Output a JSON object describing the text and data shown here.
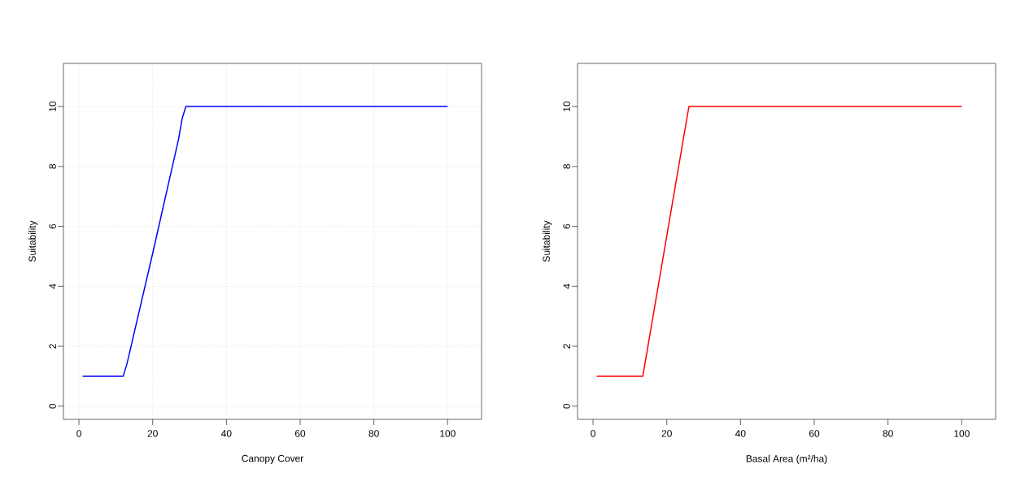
{
  "chart_data": [
    {
      "type": "line",
      "xlabel": "Canopy Cover",
      "ylabel": "Suitability",
      "color": "#0000ff",
      "grid": true,
      "x": [
        1,
        12,
        13,
        20,
        27,
        28,
        29,
        100
      ],
      "values": [
        1,
        1,
        1.4,
        5.1,
        8.9,
        9.6,
        10,
        10
      ],
      "xlim": [
        -4.2,
        109.2
      ],
      "ylim": [
        -0.44,
        11.44
      ],
      "xticks": [
        0,
        20,
        40,
        60,
        80,
        100
      ],
      "yticks": [
        0,
        2,
        4,
        6,
        8,
        10
      ]
    },
    {
      "type": "line",
      "xlabel": "Basal Area (m²/ha)",
      "ylabel": "Suitability",
      "color": "#ff0000",
      "x": [
        1,
        13.5,
        26,
        100
      ],
      "values": [
        1,
        1,
        10,
        10
      ],
      "xlim": [
        -4.2,
        109.2
      ],
      "ylim": [
        -0.44,
        11.44
      ],
      "xticks": [
        0,
        20,
        40,
        60,
        80,
        100
      ],
      "yticks": [
        0,
        2,
        4,
        6,
        8,
        10
      ]
    }
  ]
}
